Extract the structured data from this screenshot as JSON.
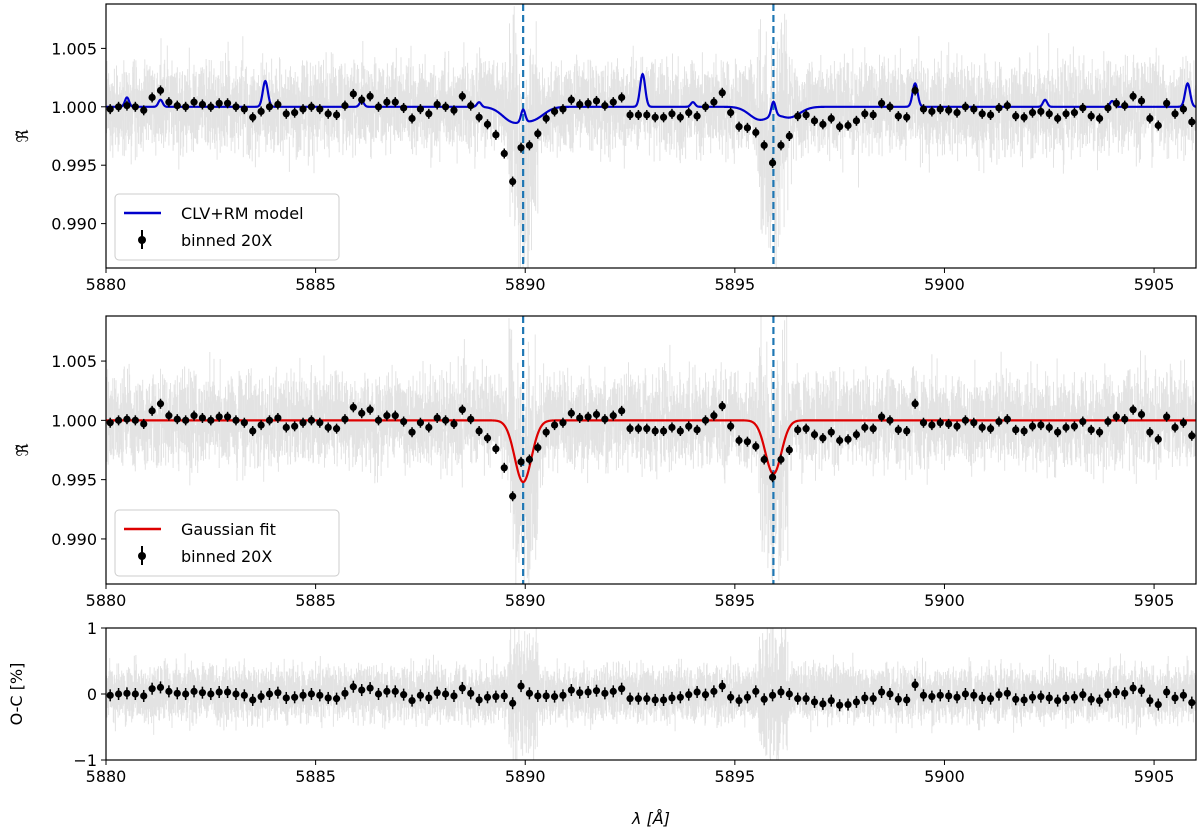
{
  "colors": {
    "clv_model": "#0000cc",
    "gaussian_fit": "#dd0000",
    "binned": "#000000",
    "raw": "#9a9a9a",
    "vline": "#1f77b4",
    "legend_frame": "#cccccc"
  },
  "chart_data": [
    {
      "type": "line",
      "panel": "top",
      "ylabel": "ℜ̃",
      "xlabel": "",
      "xlim": [
        5880,
        5906
      ],
      "ylim": [
        0.9862,
        1.0088
      ],
      "xticks": [
        5880,
        5885,
        5890,
        5895,
        5900,
        5905
      ],
      "xtick_labels": [
        "5880",
        "5885",
        "5890",
        "5895",
        "5900",
        "5905"
      ],
      "yticks": [
        0.99,
        0.995,
        1.0,
        1.005
      ],
      "ytick_labels": [
        "0.990",
        "0.995",
        "1.000",
        "1.005"
      ],
      "vlines": [
        5889.95,
        5895.92
      ],
      "legend_position": "lower-left",
      "legend": [
        "CLV+RM model",
        "binned 20X"
      ],
      "series": [
        {
          "name": "CLV+RM model",
          "kind": "line",
          "baseline": 1.0,
          "features": [
            {
              "x": 5880.5,
              "depth": 0.0008,
              "width": 0.05
            },
            {
              "x": 5881.3,
              "depth": 0.0006,
              "width": 0.05
            },
            {
              "x": 5883.8,
              "depth": 0.0022,
              "width": 0.06
            },
            {
              "x": 5886.1,
              "depth": 0.0005,
              "width": 0.05
            },
            {
              "x": 5888.9,
              "depth": 0.0004,
              "width": 0.05
            },
            {
              "x": 5889.7,
              "depth": -0.0012,
              "width": 0.25
            },
            {
              "x": 5889.95,
              "depth": 0.0011,
              "width": 0.05
            },
            {
              "x": 5890.2,
              "depth": -0.001,
              "width": 0.25
            },
            {
              "x": 5892.8,
              "depth": 0.0028,
              "width": 0.06
            },
            {
              "x": 5894.0,
              "depth": 0.0004,
              "width": 0.05
            },
            {
              "x": 5895.6,
              "depth": -0.0011,
              "width": 0.25
            },
            {
              "x": 5895.92,
              "depth": 0.0012,
              "width": 0.05
            },
            {
              "x": 5896.3,
              "depth": -0.0009,
              "width": 0.25
            },
            {
              "x": 5899.3,
              "depth": 0.002,
              "width": 0.06
            },
            {
              "x": 5902.4,
              "depth": 0.0006,
              "width": 0.05
            },
            {
              "x": 5904.0,
              "depth": 0.0005,
              "width": 0.05
            },
            {
              "x": 5905.8,
              "depth": 0.002,
              "width": 0.06
            }
          ]
        },
        {
          "name": "binned 20X",
          "kind": "scatter",
          "x": [
            5880.1,
            5880.3,
            5880.5,
            5880.7,
            5880.9,
            5881.1,
            5881.3,
            5881.5,
            5881.7,
            5881.9,
            5882.1,
            5882.3,
            5882.5,
            5882.7,
            5882.9,
            5883.1,
            5883.3,
            5883.5,
            5883.7,
            5883.9,
            5884.1,
            5884.3,
            5884.5,
            5884.7,
            5884.9,
            5885.1,
            5885.3,
            5885.5,
            5885.7,
            5885.9,
            5886.1,
            5886.3,
            5886.5,
            5886.7,
            5886.9,
            5887.1,
            5887.3,
            5887.5,
            5887.7,
            5887.9,
            5888.1,
            5888.3,
            5888.5,
            5888.7,
            5888.9,
            5889.1,
            5889.3,
            5889.5,
            5889.7,
            5889.9,
            5890.1,
            5890.3,
            5890.5,
            5890.7,
            5890.9,
            5891.1,
            5891.3,
            5891.5,
            5891.7,
            5891.9,
            5892.1,
            5892.3,
            5892.5,
            5892.7,
            5892.9,
            5893.1,
            5893.3,
            5893.5,
            5893.7,
            5893.9,
            5894.1,
            5894.3,
            5894.5,
            5894.7,
            5894.9,
            5895.1,
            5895.3,
            5895.5,
            5895.7,
            5895.9,
            5896.1,
            5896.3,
            5896.5,
            5896.7,
            5896.9,
            5897.1,
            5897.3,
            5897.5,
            5897.7,
            5897.9,
            5898.1,
            5898.3,
            5898.5,
            5898.7,
            5898.9,
            5899.1,
            5899.3,
            5899.5,
            5899.7,
            5899.9,
            5900.1,
            5900.3,
            5900.5,
            5900.7,
            5900.9,
            5901.1,
            5901.3,
            5901.5,
            5901.7,
            5901.9,
            5902.1,
            5902.3,
            5902.5,
            5902.7,
            5902.9,
            5903.1,
            5903.3,
            5903.5,
            5903.7,
            5903.9,
            5904.1,
            5904.3,
            5904.5,
            5904.7,
            5904.9,
            5905.1,
            5905.3,
            5905.5,
            5905.7,
            5905.9
          ],
          "y": [
            0.9998,
            1.0,
            1.0001,
            1.0,
            0.9997,
            1.0008,
            1.0014,
            1.0004,
            1.0001,
            1.0,
            1.0004,
            1.0002,
            1.0,
            1.0003,
            1.0003,
            1.0,
            0.9998,
            0.9991,
            0.9996,
            1.0,
            1.0002,
            0.9994,
            0.9995,
            0.9998,
            1.0,
            0.9998,
            0.9994,
            0.9993,
            1.0001,
            1.0011,
            1.0006,
            1.0009,
            1.0,
            1.0004,
            1.0004,
            0.9999,
            0.999,
            0.9998,
            0.9994,
            1.0002,
            1.0,
            0.9997,
            1.0009,
            1.0001,
            0.9991,
            0.9985,
            0.9976,
            0.996,
            0.9936,
            0.9965,
            0.9967,
            0.9977,
            0.999,
            0.9996,
            0.9998,
            1.0006,
            1.0002,
            1.0003,
            1.0005,
            1.0001,
            1.0004,
            1.0008,
            0.9993,
            0.9993,
            0.9993,
            0.9991,
            0.9991,
            0.9994,
            0.9991,
            0.9995,
            0.9992,
            1.0,
            1.0004,
            1.0012,
            0.9995,
            0.9983,
            0.9982,
            0.9978,
            0.9967,
            0.9952,
            0.9967,
            0.9975,
            0.9992,
            0.9993,
            0.9988,
            0.9985,
            0.999,
            0.9983,
            0.9984,
            0.9988,
            0.9994,
            0.9993,
            1.0003,
            1.0,
            0.9992,
            0.9991,
            1.0014,
            0.9998,
            0.9996,
            0.9998,
            0.9997,
            0.9995,
            1.0,
            0.9998,
            0.9994,
            0.9993,
            0.9999,
            1.0001,
            0.9992,
            0.9991,
            0.9995,
            0.9996,
            0.9994,
            0.999,
            0.9994,
            0.9995,
            0.9999,
            0.9992,
            0.999,
            0.9999,
            1.0003,
            1.0001,
            1.0009,
            1.0005,
            0.999,
            0.9984,
            1.0003,
            0.9994,
            0.9998,
            0.9987
          ]
        }
      ]
    },
    {
      "type": "line",
      "panel": "middle",
      "ylabel": "ℜ̃",
      "xlabel": "",
      "xlim": [
        5880,
        5906
      ],
      "ylim": [
        0.9862,
        1.0088
      ],
      "xticks": [
        5880,
        5885,
        5890,
        5895,
        5900,
        5905
      ],
      "xtick_labels": [
        "5880",
        "5885",
        "5890",
        "5895",
        "5900",
        "5905"
      ],
      "yticks": [
        0.99,
        0.995,
        1.0,
        1.005
      ],
      "ytick_labels": [
        "0.990",
        "0.995",
        "1.000",
        "1.005"
      ],
      "vlines": [
        5889.95,
        5895.92
      ],
      "legend_position": "lower-left",
      "legend": [
        "Gaussian fit",
        "binned 20X"
      ],
      "series": [
        {
          "name": "Gaussian fit",
          "kind": "line",
          "baseline": 1.0,
          "gaussians": [
            {
              "center": 5889.95,
              "amplitude": -0.0052,
              "sigma": 0.2
            },
            {
              "center": 5895.92,
              "amplitude": -0.0045,
              "sigma": 0.19
            }
          ]
        },
        {
          "name": "binned 20X",
          "kind": "scatter",
          "same_as_top": true
        }
      ]
    },
    {
      "type": "scatter",
      "panel": "bottom",
      "ylabel": "O-C [%]",
      "xlabel": "λ [Å]",
      "xlim": [
        5880,
        5906
      ],
      "ylim": [
        -1,
        1
      ],
      "xticks": [
        5880,
        5885,
        5890,
        5895,
        5900,
        5905
      ],
      "xtick_labels": [
        "5880",
        "5885",
        "5890",
        "5895",
        "5900",
        "5905"
      ],
      "yticks": [
        -1,
        0,
        1
      ],
      "ytick_labels": [
        "−1",
        "0",
        "1"
      ],
      "series": [
        {
          "name": "residuals",
          "kind": "scatter",
          "y": [
            -0.02,
            0.0,
            0.01,
            0.0,
            -0.03,
            0.08,
            0.1,
            0.04,
            0.01,
            0.0,
            0.04,
            0.02,
            0.0,
            0.03,
            0.03,
            0.0,
            -0.02,
            -0.09,
            -0.04,
            0.0,
            0.02,
            -0.06,
            -0.05,
            -0.02,
            0.0,
            -0.02,
            -0.06,
            -0.07,
            0.01,
            0.11,
            0.06,
            0.09,
            0.0,
            0.04,
            0.04,
            -0.01,
            -0.1,
            -0.02,
            -0.06,
            0.02,
            0.0,
            -0.03,
            0.09,
            0.01,
            -0.09,
            -0.05,
            -0.04,
            -0.03,
            -0.14,
            0.12,
            0.01,
            -0.03,
            -0.03,
            -0.04,
            -0.02,
            0.06,
            0.02,
            0.03,
            0.05,
            0.01,
            0.04,
            0.08,
            -0.07,
            -0.07,
            -0.07,
            -0.09,
            -0.09,
            -0.06,
            -0.05,
            -0.01,
            0.03,
            -0.01,
            0.04,
            0.12,
            -0.05,
            -0.1,
            -0.05,
            0.04,
            -0.08,
            -0.02,
            0.03,
            0.0,
            -0.07,
            -0.07,
            -0.12,
            -0.15,
            -0.1,
            -0.17,
            -0.16,
            -0.12,
            -0.06,
            -0.07,
            0.03,
            0.0,
            -0.08,
            -0.09,
            0.14,
            -0.02,
            -0.04,
            -0.02,
            -0.03,
            -0.05,
            0.0,
            -0.02,
            -0.06,
            -0.07,
            -0.01,
            0.01,
            -0.08,
            -0.09,
            -0.05,
            -0.04,
            -0.06,
            -0.1,
            -0.06,
            -0.05,
            -0.01,
            -0.08,
            -0.1,
            -0.01,
            0.03,
            0.01,
            0.09,
            0.05,
            -0.1,
            -0.16,
            0.03,
            -0.06,
            -0.02,
            -0.13
          ]
        }
      ]
    }
  ]
}
